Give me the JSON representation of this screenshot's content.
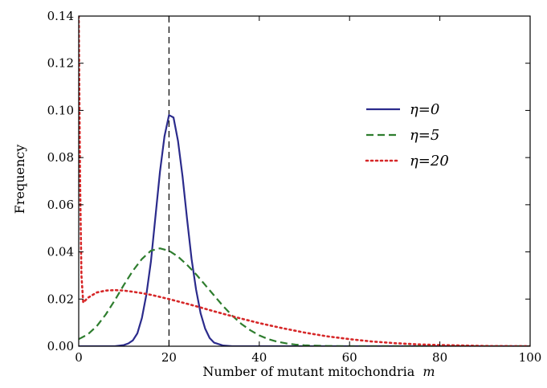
{
  "chart_data": {
    "type": "line",
    "title": "",
    "xlabel": "Number of mutant mitochondria",
    "xlabel_var": "m",
    "ylabel": "Frequency",
    "xlim": [
      0,
      100
    ],
    "ylim": [
      0,
      0.14
    ],
    "xticks": [
      0,
      20,
      40,
      60,
      80,
      100
    ],
    "yticks": [
      0.0,
      0.02,
      0.04,
      0.06,
      0.08,
      0.1,
      0.12,
      0.14
    ],
    "xtick_labels": [
      "0",
      "20",
      "40",
      "60",
      "80",
      "100"
    ],
    "ytick_labels": [
      "0.00",
      "0.02",
      "0.04",
      "0.06",
      "0.08",
      "0.10",
      "0.12",
      "0.14"
    ],
    "grid": false,
    "legend_position": "top-right",
    "vertical_reference_line": {
      "x": 20,
      "style": "dashed",
      "color": "#000000"
    },
    "series": [
      {
        "name": "η=0",
        "color": "#2b2b8c",
        "style": "solid",
        "x": [
          0,
          8,
          10,
          11,
          12,
          13,
          14,
          15,
          16,
          17,
          18,
          19,
          20,
          21,
          22,
          23,
          24,
          25,
          26,
          27,
          28,
          29,
          30,
          32,
          34,
          36,
          40,
          100
        ],
        "y": [
          0.0,
          0.0,
          0.0005,
          0.0012,
          0.0025,
          0.0055,
          0.012,
          0.022,
          0.036,
          0.055,
          0.074,
          0.089,
          0.098,
          0.097,
          0.087,
          0.072,
          0.054,
          0.037,
          0.024,
          0.014,
          0.0075,
          0.0035,
          0.0015,
          0.0003,
          0.0,
          0.0,
          0.0,
          0.0
        ]
      },
      {
        "name": "η=5",
        "color": "#2e7d2e",
        "style": "dashed",
        "x": [
          0,
          2,
          4,
          6,
          8,
          10,
          12,
          14,
          16,
          18,
          20,
          22,
          24,
          26,
          28,
          30,
          32,
          34,
          36,
          38,
          40,
          42,
          44,
          46,
          48,
          50,
          55,
          60,
          70,
          100
        ],
        "y": [
          0.003,
          0.005,
          0.0085,
          0.0135,
          0.0195,
          0.026,
          0.032,
          0.037,
          0.0405,
          0.0415,
          0.0405,
          0.038,
          0.0345,
          0.0305,
          0.026,
          0.0215,
          0.017,
          0.013,
          0.0095,
          0.0068,
          0.0046,
          0.003,
          0.0019,
          0.0012,
          0.0007,
          0.0004,
          0.0001,
          0.0,
          0.0,
          0.0
        ]
      },
      {
        "name": "η=20",
        "color": "#d62728",
        "style": "dotted",
        "x": [
          0,
          0.3,
          0.6,
          1,
          2,
          4,
          6,
          8,
          10,
          12,
          14,
          16,
          18,
          20,
          25,
          30,
          35,
          40,
          45,
          50,
          55,
          60,
          65,
          70,
          75,
          80,
          90,
          100
        ],
        "y": [
          0.14,
          0.07,
          0.03,
          0.0185,
          0.0205,
          0.0228,
          0.0236,
          0.0238,
          0.0236,
          0.0231,
          0.0225,
          0.0218,
          0.0209,
          0.02,
          0.0175,
          0.0148,
          0.0122,
          0.0098,
          0.0077,
          0.0058,
          0.0042,
          0.003,
          0.002,
          0.0013,
          0.0008,
          0.0005,
          0.0001,
          0.0
        ]
      }
    ]
  }
}
